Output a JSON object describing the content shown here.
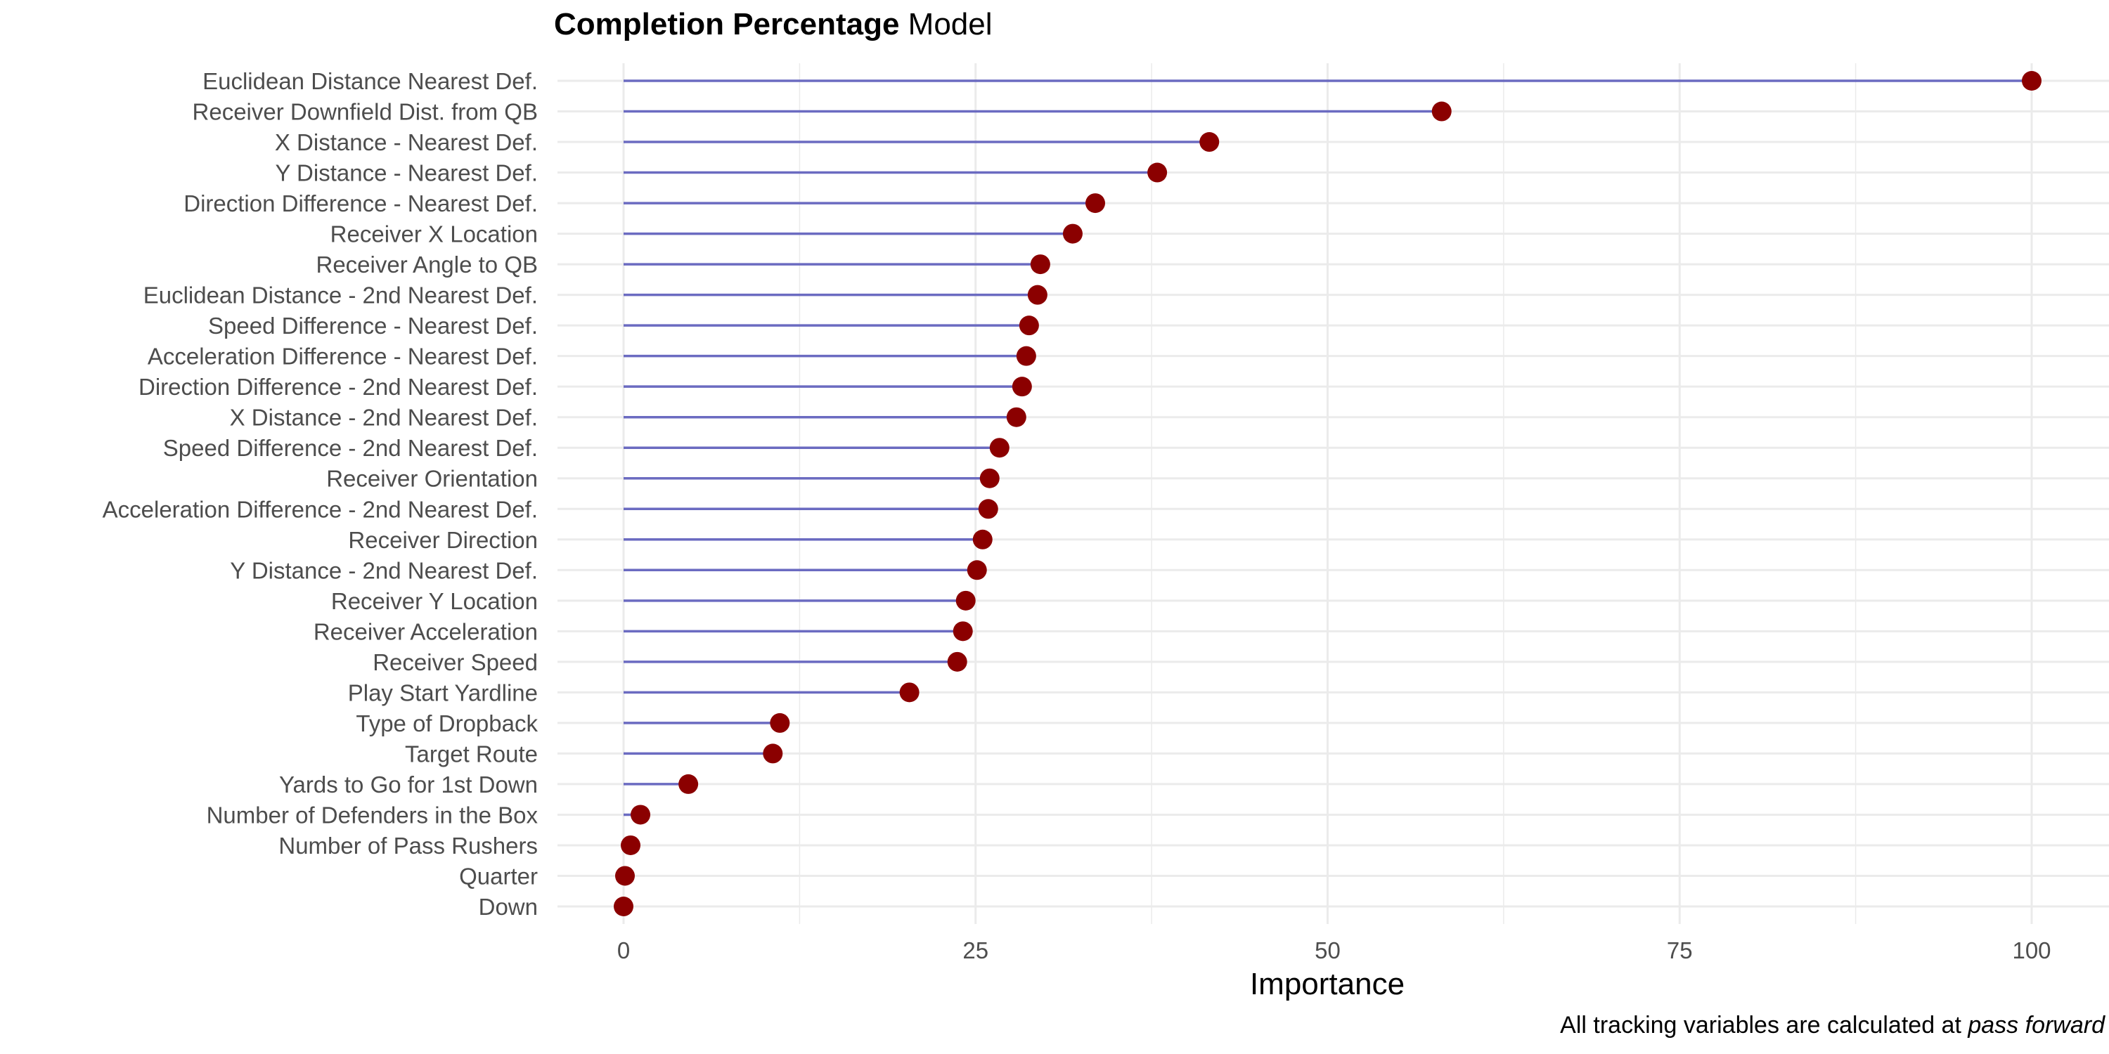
{
  "chart_data": {
    "type": "lollipop",
    "title_bold": "Completion Percentage",
    "title_rest": " Model",
    "xlabel": "Importance",
    "ylabel": "",
    "caption_plain": "All tracking variables are calculated at ",
    "caption_italic": "pass forward",
    "xlim": [
      0,
      100
    ],
    "xticks": [
      0,
      25,
      50,
      75,
      100
    ],
    "grid": true,
    "colors": {
      "segment": "#6b6bc1",
      "point": "#8b0000",
      "grid": "#ebebeb",
      "tick_text": "#4d4d4d"
    },
    "categories": [
      "Euclidean Distance Nearest Def.",
      "Receiver Downfield Dist. from QB",
      "X Distance - Nearest Def.",
      "Y Distance - Nearest Def.",
      "Direction Difference - Nearest Def.",
      "Receiver X Location",
      "Receiver Angle to QB",
      "Euclidean Distance - 2nd Nearest Def.",
      "Speed Difference - Nearest Def.",
      "Acceleration Difference - Nearest Def.",
      "Direction Difference - 2nd Nearest Def.",
      "X Distance - 2nd Nearest Def.",
      "Speed Difference - 2nd Nearest Def.",
      "Receiver Orientation",
      "Acceleration Difference - 2nd Nearest Def.",
      "Receiver Direction",
      "Y Distance - 2nd Nearest Def.",
      "Receiver Y Location",
      "Receiver Acceleration",
      "Receiver Speed",
      "Play Start Yardline",
      "Type of Dropback",
      "Target Route",
      "Yards to Go for 1st Down",
      "Number of Defenders in the Box",
      "Number of Pass Rushers",
      "Quarter",
      "Down"
    ],
    "values": [
      100,
      58.1,
      41.6,
      37.9,
      33.5,
      31.9,
      29.6,
      29.4,
      28.8,
      28.6,
      28.3,
      27.9,
      26.7,
      26.0,
      25.9,
      25.5,
      25.1,
      24.3,
      24.1,
      23.7,
      20.3,
      11.1,
      10.6,
      4.6,
      1.2,
      0.5,
      0.1,
      0
    ]
  }
}
